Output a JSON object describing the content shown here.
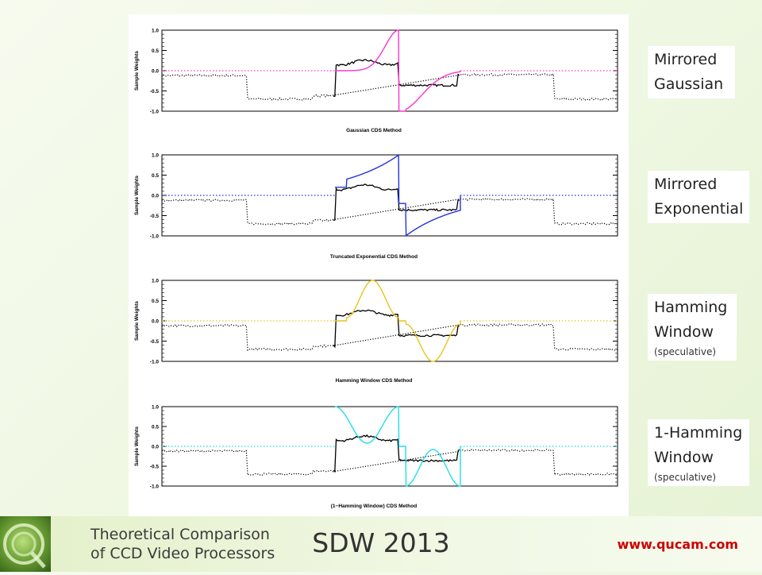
{
  "labels": [
    {
      "line1": "Mirrored",
      "line2": "Gaussian",
      "note": ""
    },
    {
      "line1": "Mirrored",
      "line2": "Exponential",
      "note": ""
    },
    {
      "line1": "Hamming",
      "line2": "Window",
      "note": "(speculative)"
    },
    {
      "line1": "1-Hamming",
      "line2": "Window",
      "note": "(speculative)"
    }
  ],
  "footer": {
    "title_line1": "Theoretical Comparison",
    "title_line2": "of CCD Video Processors",
    "center": "SDW 2013",
    "url": "www.qucam.com"
  },
  "chart_data": [
    {
      "type": "line",
      "kind": "gaussian",
      "title": "Gaussian CDS Method",
      "ylabel": "Sample Weights",
      "xlabel": "",
      "ylim": [
        -1.0,
        1.0
      ],
      "yticks": [
        "1.0",
        "0.5",
        "0.0",
        "-0.5",
        "-1.0"
      ],
      "color": "#ff33cc",
      "series": [
        {
          "role": "weights",
          "description": "mirrored gaussian weight function"
        },
        {
          "role": "video",
          "description": "CCD video waveform"
        }
      ]
    },
    {
      "type": "line",
      "kind": "exponential",
      "title": "Truncated Exponential CDS Method",
      "ylabel": "Sample Weights",
      "xlabel": "",
      "ylim": [
        -1.0,
        1.0
      ],
      "yticks": [
        "1.0",
        "0.5",
        "0.0",
        "-0.5",
        "-1.0"
      ],
      "color": "#2233dd",
      "series": [
        {
          "role": "weights",
          "description": "mirrored truncated exponential weight function"
        },
        {
          "role": "video",
          "description": "CCD video waveform"
        }
      ]
    },
    {
      "type": "line",
      "kind": "hamming",
      "title": "Hamming Window CDS Method",
      "ylabel": "Sample Weights",
      "xlabel": "",
      "ylim": [
        -1.0,
        1.0
      ],
      "yticks": [
        "1.0",
        "0.5",
        "0.0",
        "-0.5",
        "-1.0"
      ],
      "color": "#e8c41a",
      "series": [
        {
          "role": "weights",
          "description": "hamming window weight function"
        },
        {
          "role": "video",
          "description": "CCD video waveform"
        }
      ]
    },
    {
      "type": "line",
      "kind": "one_minus_hamming",
      "title": "(1−Hamming Window) CDS Method",
      "ylabel": "Sample Weights",
      "xlabel": "",
      "ylim": [
        -1.0,
        1.0
      ],
      "yticks": [
        "1.0",
        "0.5",
        "0.0",
        "-0.5",
        "-1.0"
      ],
      "color": "#22dde8",
      "series": [
        {
          "role": "weights",
          "description": "one minus hamming window weight function"
        },
        {
          "role": "video",
          "description": "CCD video waveform"
        }
      ]
    }
  ]
}
